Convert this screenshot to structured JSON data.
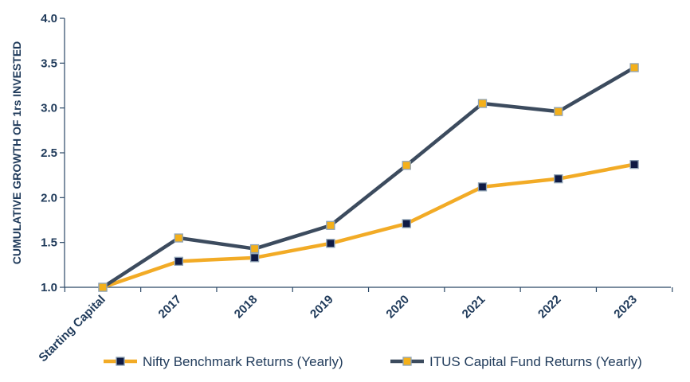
{
  "chart_data": {
    "type": "line",
    "categories": [
      "Starting Capital",
      "2017",
      "2018",
      "2019",
      "2020",
      "2021",
      "2022",
      "2023"
    ],
    "series": [
      {
        "name": "Nifty Benchmark Returns (Yearly)",
        "values": [
          1.0,
          1.29,
          1.33,
          1.49,
          1.71,
          2.12,
          2.21,
          2.37
        ],
        "line_color": "#f2ab26",
        "marker_color": "#0f1a44"
      },
      {
        "name": "ITUS Capital Fund Returns (Yearly)",
        "values": [
          1.0,
          1.55,
          1.43,
          1.69,
          2.36,
          3.05,
          2.96,
          3.45
        ],
        "line_color": "#3c4b5e",
        "marker_color": "#f4b01a"
      }
    ],
    "ylabel": "CUMULATIVE GROWTH OF 1rs INVESTED",
    "ylim": [
      1.0,
      4.0
    ],
    "yticks": [
      "1.0",
      "1.5",
      "2.0",
      "2.5",
      "3.0",
      "3.5",
      "4.0"
    ],
    "grid": false,
    "legend_position": "bottom",
    "axis_color": "#2b4866",
    "text_color": "#1f3a5a"
  }
}
